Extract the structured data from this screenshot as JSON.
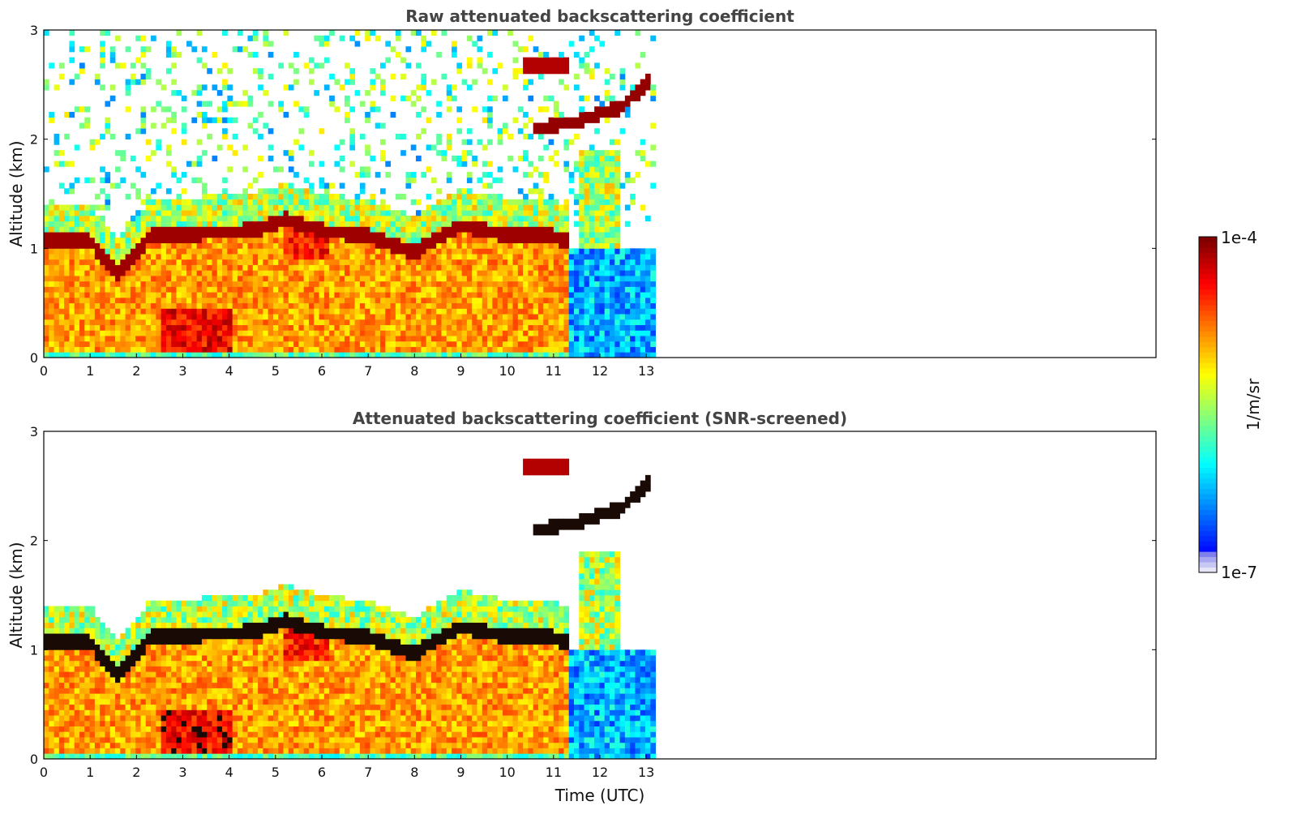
{
  "chart_data": [
    {
      "type": "heatmap",
      "title": "Raw attenuated backscattering coefficient",
      "xlabel": "",
      "ylabel": "Altitude (km)",
      "xlim": [
        0,
        24
      ],
      "ylim": [
        0,
        3
      ],
      "xticks": [
        "0",
        "1",
        "2",
        "3",
        "4",
        "5",
        "6",
        "7",
        "8",
        "9",
        "10",
        "11",
        "12",
        "13"
      ],
      "yticks": [
        "0",
        "1",
        "2",
        "3"
      ],
      "data_end_time": 13.2,
      "layers": [
        {
          "name": "boundary-layer",
          "x_range": [
            0,
            11.3
          ],
          "top_km": 1.2,
          "value_log10": -4.9
        },
        {
          "name": "clear-air-cap",
          "x_range": [
            11.3,
            13.2
          ],
          "top_km": 1.0,
          "value_log10": -5.8
        },
        {
          "name": "cloud-tops",
          "x": [
            0,
            1,
            1.6,
            2.3,
            4.5,
            5.2,
            6,
            7,
            8,
            9,
            10,
            11
          ],
          "altitude_km": [
            1.05,
            1.05,
            0.75,
            1.1,
            1.15,
            1.25,
            1.15,
            1.1,
            0.95,
            1.2,
            1.1,
            1.1
          ]
        },
        {
          "name": "elevated-layer",
          "x": [
            10.6,
            11.4,
            12.5,
            13.1
          ],
          "altitude_km": [
            2.1,
            2.15,
            2.3,
            2.55
          ]
        }
      ]
    },
    {
      "type": "heatmap",
      "title": "Attenuated backscattering coefficient (SNR-screened)",
      "xlabel": "Time (UTC)",
      "ylabel": "Altitude (km)",
      "xlim": [
        0,
        24
      ],
      "ylim": [
        0,
        3
      ],
      "xticks": [
        "0",
        "1",
        "2",
        "3",
        "4",
        "5",
        "6",
        "7",
        "8",
        "9",
        "10",
        "11",
        "12",
        "13"
      ],
      "yticks": [
        "0",
        "1",
        "2",
        "3"
      ],
      "data_end_time": 13.2,
      "screened": true
    }
  ],
  "colorbar": {
    "label": "1/m/sr",
    "min_label": "1e-7",
    "max_label": "1e-4",
    "min": 1e-07,
    "max": 0.0001,
    "scale": "log",
    "colormap": "jet"
  }
}
